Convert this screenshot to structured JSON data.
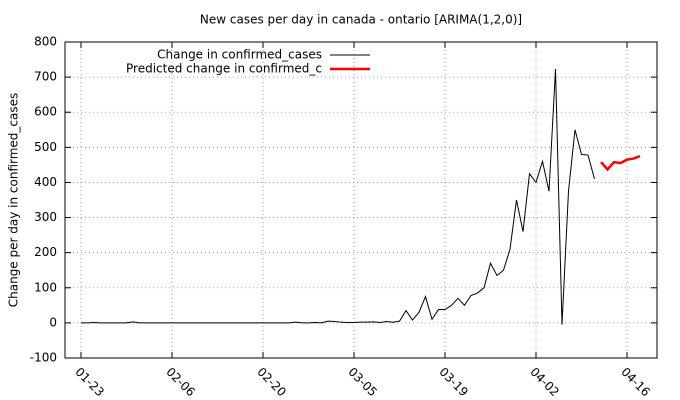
{
  "chart_data": {
    "type": "line",
    "title": "New cases per day in canada - ontario [ARIMA(1,2,0)]",
    "y_label": "Change per day in confirmed_cases",
    "categories": [
      "01-23",
      null,
      null,
      null,
      null,
      null,
      null,
      null,
      null,
      null,
      null,
      null,
      null,
      null,
      "02-06",
      null,
      null,
      null,
      null,
      null,
      null,
      null,
      null,
      null,
      null,
      null,
      null,
      null,
      "02-20",
      null,
      null,
      null,
      null,
      null,
      null,
      null,
      null,
      null,
      null,
      null,
      null,
      null,
      "03-05",
      null,
      null,
      null,
      null,
      null,
      null,
      null,
      null,
      null,
      null,
      null,
      null,
      null,
      "03-19",
      null,
      null,
      null,
      null,
      null,
      null,
      null,
      null,
      null,
      null,
      null,
      null,
      null,
      "04-02",
      null,
      null,
      null,
      null,
      null,
      null,
      null,
      null,
      null,
      null,
      null,
      null,
      null,
      "04-16",
      null,
      null
    ],
    "series": [
      {
        "name": "Change in confirmed_cases",
        "color": "#000000",
        "values": [
          0,
          0,
          1,
          0,
          0,
          0,
          0,
          0,
          3,
          0,
          0,
          0,
          0,
          0,
          0,
          0,
          0,
          0,
          0,
          0,
          0,
          0,
          0,
          0,
          0,
          0,
          0,
          0,
          0,
          0,
          0,
          0,
          0,
          2,
          0,
          0,
          1,
          0,
          5,
          4,
          2,
          1,
          1,
          2,
          2,
          3,
          1,
          4,
          2,
          5,
          35,
          8,
          30,
          75,
          10,
          38,
          38,
          50,
          70,
          50,
          78,
          85,
          100,
          170,
          135,
          150,
          210,
          350,
          260,
          425,
          400,
          460,
          375,
          723,
          -5,
          375,
          550,
          480,
          478,
          410,
          null,
          null,
          null,
          null,
          null,
          null,
          null
        ]
      },
      {
        "name": "Predicted change in confirmed_c",
        "color": "#ff0000",
        "values": [
          null,
          null,
          null,
          null,
          null,
          null,
          null,
          null,
          null,
          null,
          null,
          null,
          null,
          null,
          null,
          null,
          null,
          null,
          null,
          null,
          null,
          null,
          null,
          null,
          null,
          null,
          null,
          null,
          null,
          null,
          null,
          null,
          null,
          null,
          null,
          null,
          null,
          null,
          null,
          null,
          null,
          null,
          null,
          null,
          null,
          null,
          null,
          null,
          null,
          null,
          null,
          null,
          null,
          null,
          null,
          null,
          null,
          null,
          null,
          null,
          null,
          null,
          null,
          null,
          null,
          null,
          null,
          null,
          null,
          null,
          null,
          null,
          null,
          null,
          null,
          null,
          null,
          null,
          null,
          null,
          458,
          437,
          458,
          455,
          465,
          468,
          475
        ]
      }
    ],
    "ylim": [
      -100,
      800
    ],
    "yticks": [
      -100,
      0,
      100,
      200,
      300,
      400,
      500,
      600,
      700,
      800
    ],
    "grid": true,
    "legend": "top-left"
  }
}
